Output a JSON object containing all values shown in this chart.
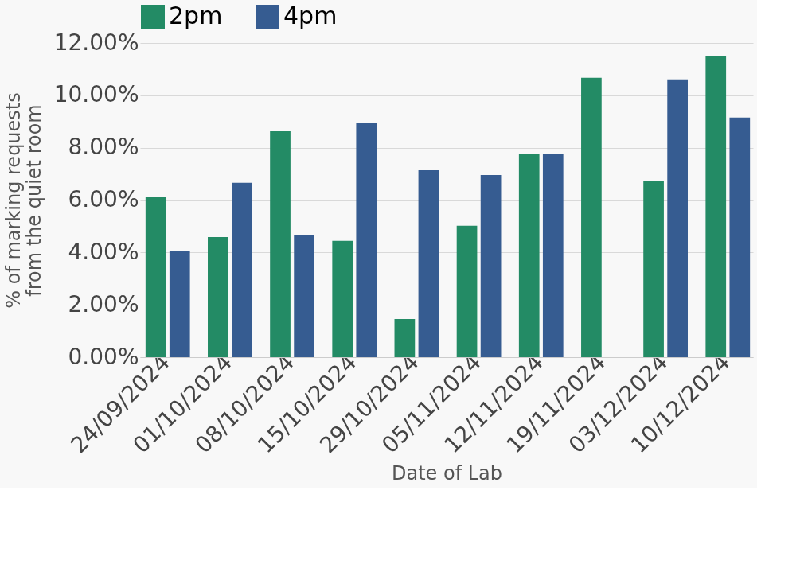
{
  "chart_data": {
    "type": "bar",
    "xlabel": "Date of Lab",
    "ylabel": "% of marking requests\nfrom the quiet room",
    "categories": [
      "24/09/2024",
      "01/10/2024",
      "08/10/2024",
      "15/10/2024",
      "29/10/2024",
      "05/11/2024",
      "12/11/2024",
      "19/11/2024",
      "03/12/2024",
      "10/12/2024"
    ],
    "series": [
      {
        "name": "2pm",
        "color": "#238b65",
        "values": [
          6.11,
          4.59,
          8.63,
          4.44,
          1.46,
          5.02,
          7.78,
          10.67,
          6.72,
          11.49
        ]
      },
      {
        "name": "4pm",
        "color": "#365c91",
        "values": [
          4.07,
          6.66,
          4.68,
          8.94,
          7.14,
          6.96,
          7.75,
          null,
          10.61,
          9.15
        ]
      }
    ],
    "ylim": [
      0,
      12
    ],
    "yticks": [
      {
        "value": 0,
        "label": "0.00%"
      },
      {
        "value": 2,
        "label": "2.00%"
      },
      {
        "value": 4,
        "label": "4.00%"
      },
      {
        "value": 6,
        "label": "6.00%"
      },
      {
        "value": 8,
        "label": "8.00%"
      },
      {
        "value": 10,
        "label": "10.00%"
      },
      {
        "value": 12,
        "label": "12.00%"
      }
    ],
    "grid": "y",
    "legend": "top"
  }
}
